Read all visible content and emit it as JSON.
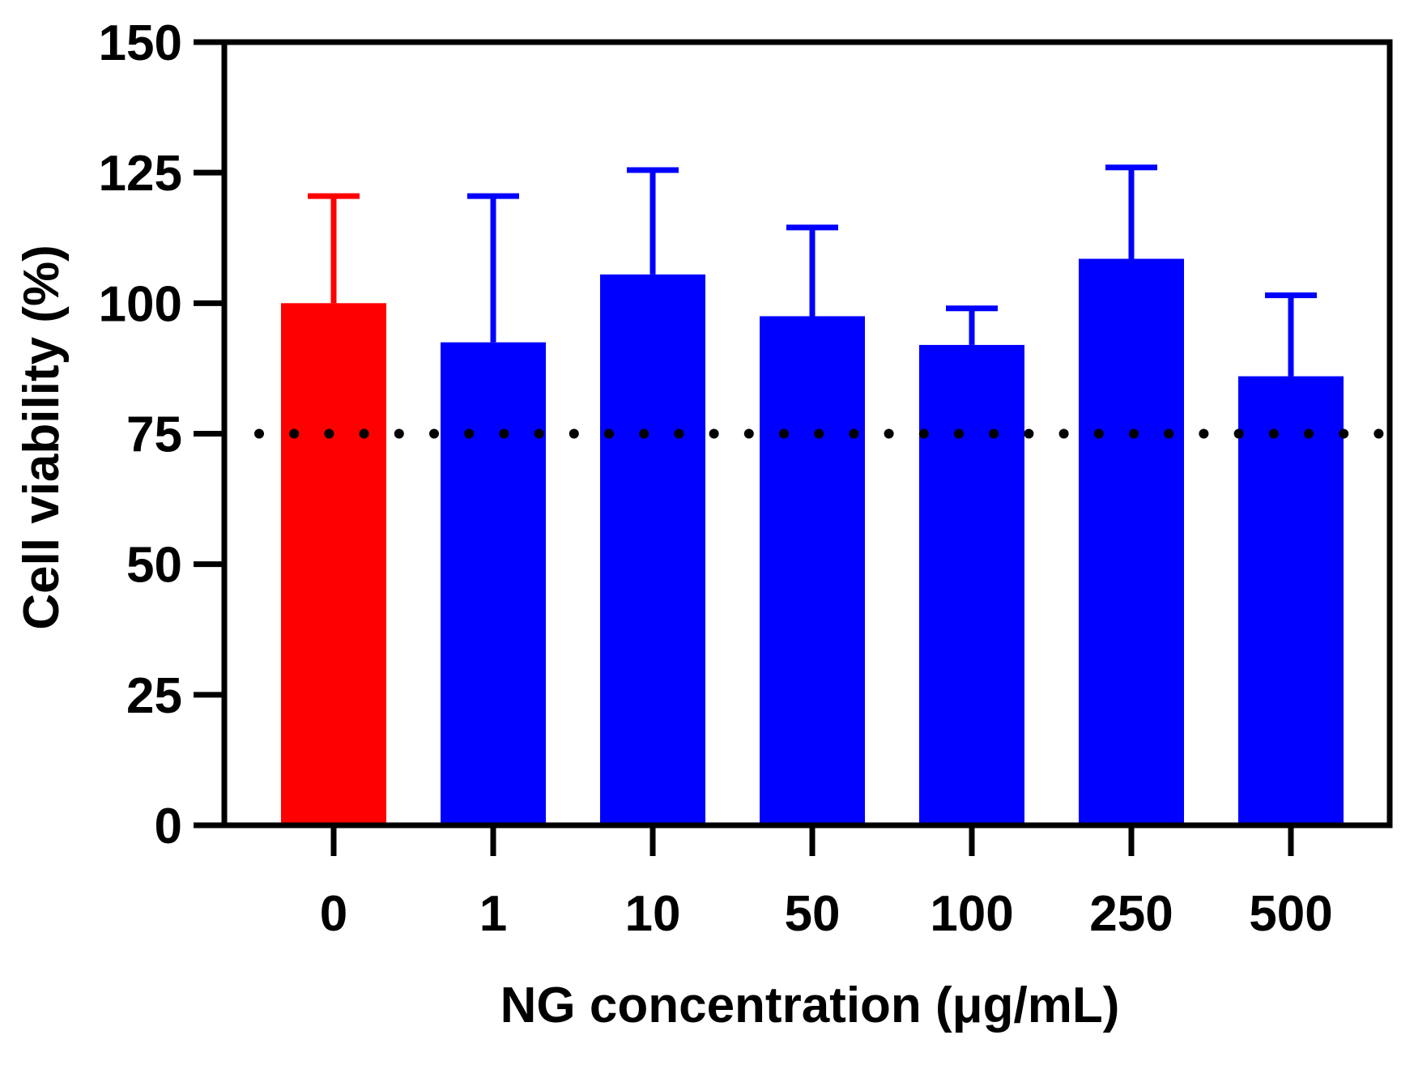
{
  "chart_data": {
    "type": "bar",
    "title": "",
    "xlabel": "NG concentration (μg/mL)",
    "ylabel": "Cell viability (%)",
    "categories": [
      "0",
      "1",
      "10",
      "50",
      "100",
      "250",
      "500"
    ],
    "values": [
      100,
      92.5,
      105.5,
      97.5,
      92,
      108.5,
      86
    ],
    "error_upper": [
      120.5,
      120.5,
      125.5,
      114.5,
      99,
      126,
      101.5
    ],
    "bar_colors": [
      "#ff0000",
      "#0000ff",
      "#0000ff",
      "#0000ff",
      "#0000ff",
      "#0000ff",
      "#0000ff"
    ],
    "ylim": [
      0,
      150
    ],
    "yticks": [
      0,
      25,
      50,
      75,
      100,
      125,
      150
    ],
    "reference_line": {
      "value": 75,
      "style": "dotted",
      "color": "#000000"
    },
    "grid": false
  }
}
